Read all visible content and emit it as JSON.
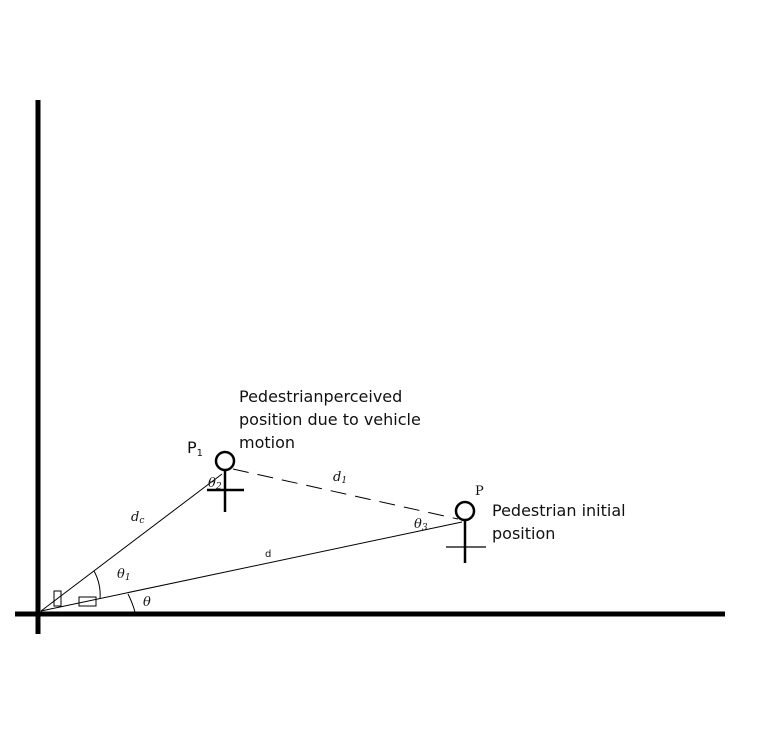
{
  "labels": {
    "perceived_line1": "Pedestrianperceived",
    "perceived_line2": "position due to vehicle",
    "perceived_line3": "motion",
    "initial_line1": "Pedestrian initial",
    "initial_line2": "position",
    "p1_main": "P",
    "p1_sub": "1",
    "p": "P",
    "dc_main": "d",
    "dc_sub": "c",
    "d": "d",
    "d1_main": "d",
    "d1_sub": "1",
    "theta": "θ",
    "theta1_main": "θ",
    "theta1_sub": "1",
    "theta2_main": "θ",
    "theta2_sub": "2",
    "theta3_main": "θ",
    "theta3_sub": "3"
  },
  "colors": {
    "ink": "#000000",
    "background": "#ffffff"
  }
}
